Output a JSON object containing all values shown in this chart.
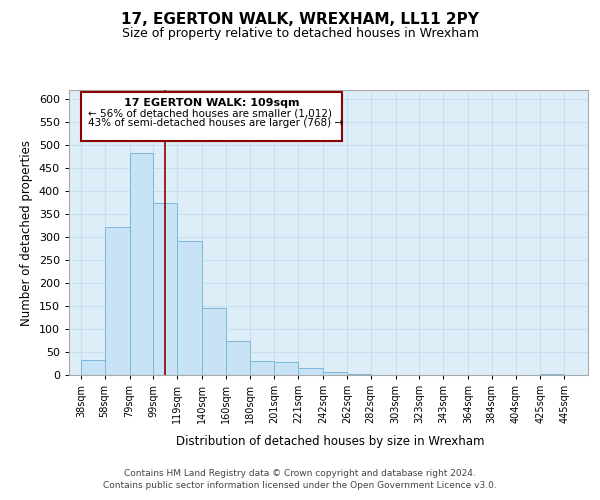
{
  "title": "17, EGERTON WALK, WREXHAM, LL11 2PY",
  "subtitle": "Size of property relative to detached houses in Wrexham",
  "xlabel": "Distribution of detached houses by size in Wrexham",
  "ylabel": "Number of detached properties",
  "bar_left_edges": [
    38,
    58,
    79,
    99,
    119,
    140,
    160,
    180,
    201,
    221,
    242,
    262,
    282,
    303,
    323,
    343,
    364,
    384,
    404,
    425
  ],
  "bar_heights": [
    32,
    322,
    483,
    375,
    291,
    145,
    75,
    31,
    29,
    15,
    6,
    2,
    1,
    1,
    0,
    0,
    0,
    0,
    0,
    3
  ],
  "bin_labels": [
    "38sqm",
    "58sqm",
    "79sqm",
    "99sqm",
    "119sqm",
    "140sqm",
    "160sqm",
    "180sqm",
    "201sqm",
    "221sqm",
    "242sqm",
    "262sqm",
    "282sqm",
    "303sqm",
    "323sqm",
    "343sqm",
    "364sqm",
    "384sqm",
    "404sqm",
    "425sqm",
    "445sqm"
  ],
  "bar_color": "#c8e3f5",
  "bar_edge_color": "#7ab8d9",
  "marker_x": 109,
  "marker_color": "#8b0000",
  "ylim": [
    0,
    620
  ],
  "xlim": [
    28,
    465
  ],
  "annotation_title": "17 EGERTON WALK: 109sqm",
  "annotation_line1": "← 56% of detached houses are smaller (1,012)",
  "annotation_line2": "43% of semi-detached houses are larger (768) →",
  "annotation_box_color": "#ffffff",
  "annotation_box_edge": "#8b0000",
  "footer_line1": "Contains HM Land Registry data © Crown copyright and database right 2024.",
  "footer_line2": "Contains public sector information licensed under the Open Government Licence v3.0.",
  "yticks": [
    0,
    50,
    100,
    150,
    200,
    250,
    300,
    350,
    400,
    450,
    500,
    550,
    600
  ],
  "grid_color": "#c8dff0",
  "background_color": "#ddeef8"
}
